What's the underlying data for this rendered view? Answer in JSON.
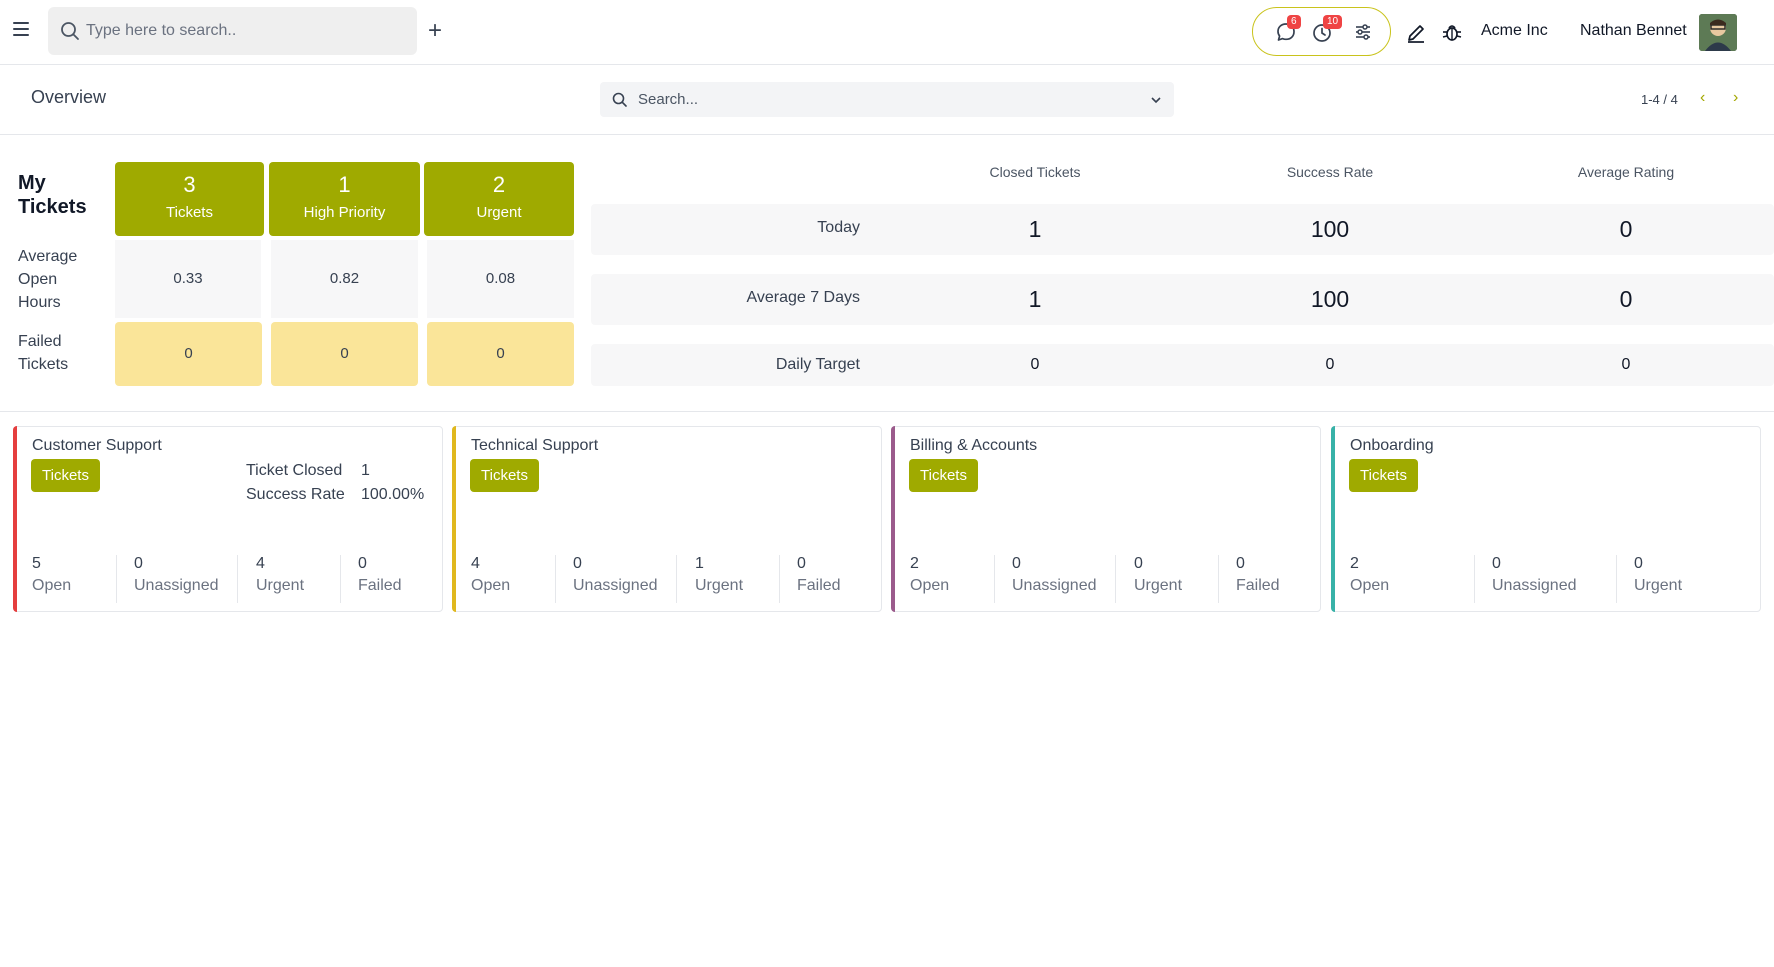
{
  "topbar": {
    "search_placeholder": "Type here to search..",
    "plus": "+",
    "messages_badge": "6",
    "activities_badge": "10",
    "company": "Acme Inc",
    "user": "Nathan Bennet",
    "icons": [
      "menu-icon",
      "search-icon",
      "plus-icon",
      "chat-icon",
      "clock-icon",
      "sliders-icon",
      "pencil-icon",
      "bug-icon"
    ],
    "accent_color": "#c9c31c"
  },
  "control": {
    "title": "Overview",
    "search_placeholder": "Search...",
    "pager": "1-4 / 4",
    "prev": "‹",
    "next": "›"
  },
  "my_tickets": {
    "title_line1": "My",
    "title_line2": "Tickets",
    "avg_label_1": "Average",
    "avg_label_2": "Open",
    "avg_label_3": "Hours",
    "failed_label_1": "Failed",
    "failed_label_2": "Tickets",
    "boxes": [
      {
        "num": "3",
        "label": "Tickets"
      },
      {
        "num": "1",
        "label": "High Priority"
      },
      {
        "num": "2",
        "label": "Urgent"
      }
    ],
    "avg_hours": [
      "0.33",
      "0.82",
      "0.08"
    ],
    "failed": [
      "0",
      "0",
      "0"
    ],
    "colors": {
      "olive": "#9faa00",
      "yellow": "#fae599",
      "gray": "#f7f7f8"
    }
  },
  "stats": {
    "headers": [
      "Closed Tickets",
      "Success Rate",
      "Average Rating"
    ],
    "rows": [
      {
        "label": "Today",
        "values": [
          "1",
          "100",
          "0"
        ]
      },
      {
        "label": "Average 7 Days",
        "values": [
          "1",
          "100",
          "0"
        ]
      },
      {
        "label": "Daily Target",
        "values": [
          "0",
          "0",
          "0"
        ]
      }
    ]
  },
  "teams": [
    {
      "name": "Customer Support",
      "button": "Tickets",
      "accent": "#e53e3e",
      "meta_label_1": "Ticket Closed",
      "meta_value_1": "1",
      "meta_label_2": "Success Rate",
      "meta_value_2": "100.00%",
      "stats": [
        {
          "value": "5",
          "label": "Open"
        },
        {
          "value": "0",
          "label": "Unassigned"
        },
        {
          "value": "4",
          "label": "Urgent"
        },
        {
          "value": "0",
          "label": "Failed"
        }
      ]
    },
    {
      "name": "Technical Support",
      "button": "Tickets",
      "accent": "#e0b81e",
      "stats": [
        {
          "value": "4",
          "label": "Open"
        },
        {
          "value": "0",
          "label": "Unassigned"
        },
        {
          "value": "1",
          "label": "Urgent"
        },
        {
          "value": "0",
          "label": "Failed"
        }
      ]
    },
    {
      "name": "Billing & Accounts",
      "button": "Tickets",
      "accent": "#9b5b8c",
      "stats": [
        {
          "value": "2",
          "label": "Open"
        },
        {
          "value": "0",
          "label": "Unassigned"
        },
        {
          "value": "0",
          "label": "Urgent"
        },
        {
          "value": "0",
          "label": "Failed"
        }
      ]
    },
    {
      "name": "Onboarding",
      "button": "Tickets",
      "accent": "#38b2a8",
      "stats": [
        {
          "value": "2",
          "label": "Open"
        },
        {
          "value": "0",
          "label": "Unassigned"
        },
        {
          "value": "0",
          "label": "Urgent"
        }
      ]
    }
  ]
}
